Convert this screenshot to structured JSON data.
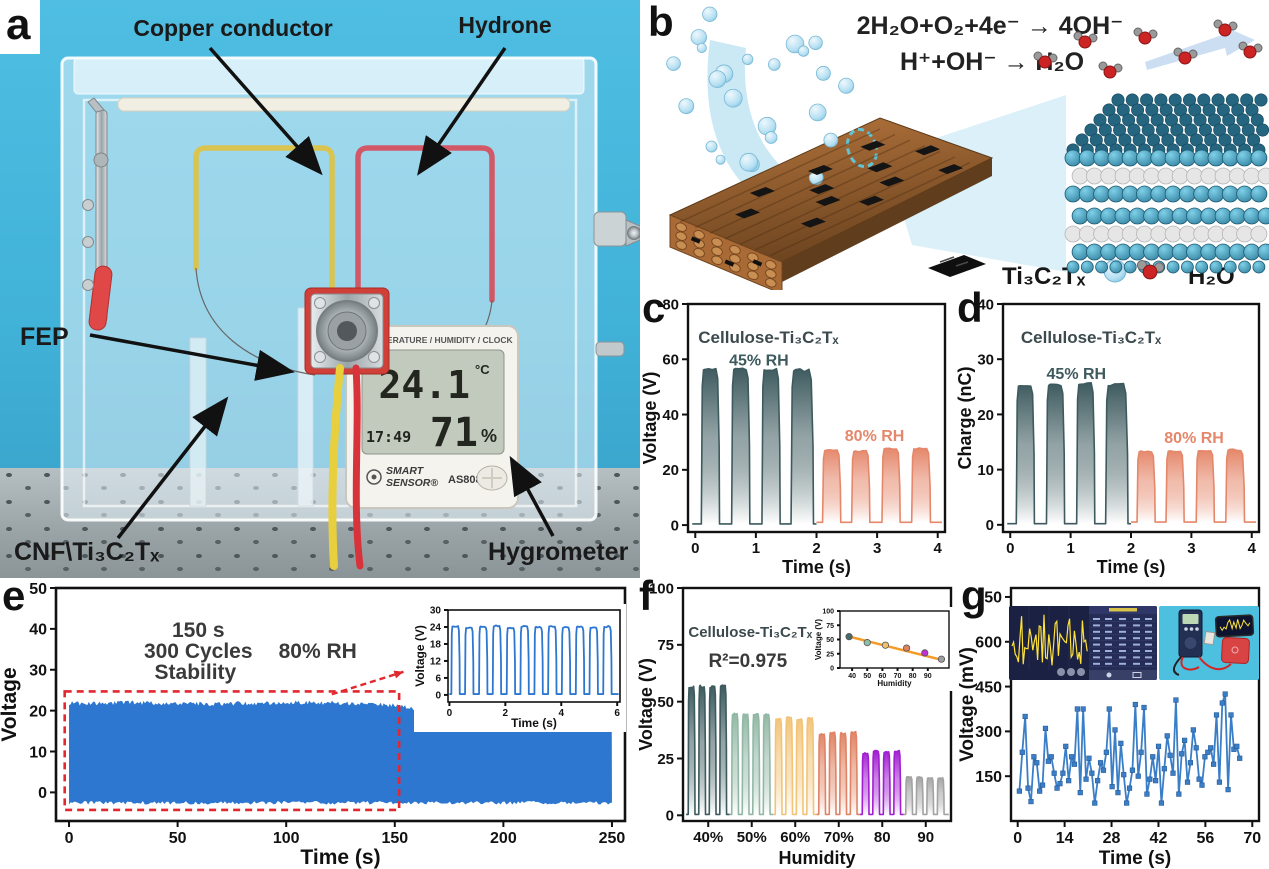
{
  "panels": {
    "a": "a",
    "b": "b",
    "c": "c",
    "d": "d",
    "e": "e",
    "f": "f",
    "g": "g"
  },
  "panel_a": {
    "labels": {
      "copper": "Copper conductor",
      "hydrone": "Hydrone",
      "fep": "FEP",
      "cnf": "CNF\\Ti₃C₂Tₓ",
      "hygrometer": "Hygrometer"
    },
    "hygrometer": {
      "header": "TEMPERATURE / HUMIDITY / CLOCK",
      "temperature": "24.1",
      "temp_unit": "°C",
      "time": "17:49",
      "humidity": "71",
      "humidity_unit": "%",
      "brand_line1": "SMART",
      "brand_line2": "SENSOR®",
      "model": "AS808"
    }
  },
  "panel_b": {
    "equation1": "2H₂O+O₂+4e⁻ → 4OH⁻",
    "equation2": "H⁺+OH⁻ → H₂O",
    "legend": {
      "mxene": "Ti₃C₂Tₓ",
      "water": "H₂O"
    }
  },
  "colors": {
    "teal": "#3d5a5e",
    "salmon": "#e5876a",
    "sage": "#92b8a5",
    "sand": "#f2c478",
    "purple": "#a21ed1",
    "gray": "#a3a3a3",
    "band_blue": "#2e77d0",
    "line_blue": "#3a7ec8",
    "fit_orange": "#f59a23",
    "dash_red": "#e0282e"
  },
  "chart_data": [
    {
      "id": "c",
      "type": "pulse-train",
      "xlabel": "Time (s)",
      "ylabel": "Voltage (V)",
      "xlim": [
        -0.12,
        4.12
      ],
      "ylim": [
        -2.5,
        80
      ],
      "xticks": [
        0,
        1,
        2,
        3,
        4
      ],
      "yticks": [
        0,
        20,
        40,
        60,
        80
      ],
      "series": [
        {
          "name": "45% RH",
          "color": "#3d5a5e",
          "x0": -0.05,
          "x1": 2.0,
          "base": 0.4,
          "pulses": [
            [
              0.1,
              0.4,
              57
            ],
            [
              0.6,
              0.9,
              57.2
            ],
            [
              1.1,
              1.4,
              57
            ],
            [
              1.58,
              1.95,
              56.6
            ]
          ]
        },
        {
          "name": "80% RH",
          "color": "#e5876a",
          "x0": 2.0,
          "x1": 4.07,
          "base": 1.0,
          "pulses": [
            [
              2.1,
              2.4,
              27.3
            ],
            [
              2.58,
              2.88,
              27.0
            ],
            [
              3.08,
              3.38,
              28.0
            ],
            [
              3.57,
              3.88,
              28.0
            ]
          ]
        }
      ],
      "annotations": [
        {
          "text": "Cellulose-Ti₃C₂Tₓ",
          "fx": 0.04,
          "fy": 0.17,
          "size": 17,
          "color": "#3c4a4e"
        },
        {
          "text": "45% RH",
          "fx": 0.16,
          "fy": 0.27,
          "size": 16,
          "color": "#3d5a5e"
        },
        {
          "text": "80% RH",
          "fx": 0.61,
          "fy": 0.6,
          "size": 16,
          "color": "#e5876a"
        }
      ],
      "m": {
        "l": 48,
        "r": 10,
        "t": 14,
        "b": 46
      },
      "fs": {
        "t": 15,
        "l": 18
      },
      "ylx": 16,
      "seed": 11
    },
    {
      "id": "d",
      "type": "pulse-train",
      "xlabel": "Time (s)",
      "ylabel": "Charge (nC)",
      "xlim": [
        -0.12,
        4.12
      ],
      "ylim": [
        -1.3,
        40
      ],
      "xticks": [
        0,
        1,
        2,
        3,
        4
      ],
      "yticks": [
        0,
        10,
        20,
        30,
        40
      ],
      "series": [
        {
          "name": "45% RH",
          "color": "#3d5a5e",
          "x0": -0.05,
          "x1": 2.0,
          "base": 0.2,
          "pulses": [
            [
              0.1,
              0.4,
              25.5
            ],
            [
              0.6,
              0.9,
              25.6
            ],
            [
              1.1,
              1.4,
              25.8
            ],
            [
              1.58,
              1.95,
              25.6
            ]
          ]
        },
        {
          "name": "80% RH",
          "color": "#e5876a",
          "x0": 2.0,
          "x1": 4.07,
          "base": 0.5,
          "pulses": [
            [
              2.1,
              2.4,
              13.4
            ],
            [
              2.58,
              2.88,
              13.5
            ],
            [
              3.08,
              3.38,
              13.6
            ],
            [
              3.57,
              3.88,
              13.7
            ]
          ]
        }
      ],
      "annotations": [
        {
          "text": "Cellulose-Ti₃C₂Tₓ",
          "fx": 0.07,
          "fy": 0.17,
          "size": 17,
          "color": "#3c4a4e"
        },
        {
          "text": "45% RH",
          "fx": 0.17,
          "fy": 0.33,
          "size": 16,
          "color": "#3d5a5e"
        },
        {
          "text": "80% RH",
          "fx": 0.63,
          "fy": 0.61,
          "size": 16,
          "color": "#e5876a"
        }
      ],
      "m": {
        "l": 48,
        "r": 10,
        "t": 14,
        "b": 46
      },
      "fs": {
        "t": 15,
        "l": 18
      },
      "ylx": 16,
      "seed": 12
    },
    {
      "id": "e",
      "type": "band",
      "xlabel": "Time (s)",
      "ylabel": "Voltage",
      "xlim": [
        -6,
        256
      ],
      "ylim": [
        -7,
        50
      ],
      "xticks": [
        0,
        50,
        100,
        150,
        200,
        250
      ],
      "yticks": [
        0,
        10,
        20,
        30,
        40,
        50
      ],
      "series": [
        {
          "color": "#2e77d0",
          "bottom": -3,
          "top": [
            [
              0,
              22.3
            ],
            [
              30,
              22.5
            ],
            [
              60,
              22.2
            ],
            [
              90,
              22.4
            ],
            [
              110,
              22.6
            ],
            [
              130,
              22.3
            ],
            [
              148,
              21.9
            ],
            [
              158,
              21.1
            ],
            [
              170,
              20.4
            ],
            [
              185,
              19.5
            ],
            [
              200,
              18.9
            ],
            [
              212,
              18.4
            ],
            [
              225,
              17.7
            ],
            [
              238,
              17.2
            ],
            [
              250,
              16.8
            ]
          ]
        }
      ],
      "annotations": [
        {
          "text": "150 s",
          "fx": 0.25,
          "fy": 0.21,
          "size": 21,
          "color": "#3a3a3a",
          "anchor": "middle"
        },
        {
          "text": "300 Cycles",
          "fx": 0.25,
          "fy": 0.3,
          "size": 21,
          "color": "#3a3a3a",
          "anchor": "middle"
        },
        {
          "text": "Stability",
          "fx": 0.245,
          "fy": 0.39,
          "size": 21,
          "color": "#3a3a3a",
          "anchor": "middle"
        },
        {
          "text": "80% RH",
          "fx": 0.46,
          "fy": 0.3,
          "size": 21,
          "color": "#3a3a3a",
          "anchor": "middle"
        }
      ],
      "shapes": [
        {
          "type": "dashed-rect",
          "x1": -2,
          "y1": -4.3,
          "x2": 152,
          "y2": 24.7,
          "color": "#e0282e",
          "width": 2.6
        },
        {
          "type": "dashed-arrow",
          "x1": 121,
          "y1": 24,
          "x2": 154,
          "y2": 29.5,
          "color": "#e0282e",
          "width": 2.4
        }
      ],
      "m": {
        "l": 56,
        "r": 12,
        "t": 10,
        "b": 48
      },
      "fs": {
        "t": 16,
        "l": 21
      },
      "ylx": 16,
      "fw": 2.6,
      "seed": 21
    },
    {
      "id": "e-inset",
      "type": "pulse-train",
      "xlabel": "Time (s)",
      "ylabel": "Voltage (V)",
      "xlim": [
        -0.05,
        6.1
      ],
      "ylim": [
        -2.5,
        30
      ],
      "xticks": [
        0,
        2,
        4,
        6
      ],
      "yticks": [
        0,
        6,
        12,
        18,
        24,
        30
      ],
      "series": [
        {
          "color": "#2e77d0",
          "fill": "none",
          "x0": 0,
          "x1": 6.05,
          "base": 0.3,
          "sw": 1.8,
          "pulses": [
            [
              0.07,
              0.37,
              24.5
            ],
            [
              0.56,
              0.86,
              24.0
            ],
            [
              1.06,
              1.36,
              24.3
            ],
            [
              1.55,
              1.85,
              24.6
            ],
            [
              2.05,
              2.35,
              24.0
            ],
            [
              2.54,
              2.84,
              24.4
            ],
            [
              3.04,
              3.34,
              24.2
            ],
            [
              3.53,
              3.83,
              24.5
            ],
            [
              4.02,
              4.32,
              24.0
            ],
            [
              4.52,
              4.82,
              24.3
            ],
            [
              5.01,
              5.31,
              24.1
            ],
            [
              5.5,
              5.8,
              24.4
            ]
          ]
        }
      ],
      "m": {
        "l": 34,
        "r": 6,
        "t": 6,
        "b": 30
      },
      "fs": {
        "t": 10,
        "l": 12
      },
      "ylx": 10,
      "fw": 1.6,
      "tl": 4,
      "seed": 31
    },
    {
      "id": "f",
      "type": "pulse-train",
      "xlabel": "Humidity",
      "ylabel": "Voltage (V)",
      "xlim": [
        34.2,
        95.8
      ],
      "ylim": [
        -2.5,
        100
      ],
      "xticks": [
        40,
        50,
        60,
        70,
        80,
        90
      ],
      "xtick_labels": [
        "40%",
        "50%",
        "60%",
        "70%",
        "80",
        "90"
      ],
      "yticks": [
        0,
        25,
        50,
        75,
        100
      ],
      "series": [
        {
          "name": "40%",
          "color": "#3d5a5e",
          "x0": 34.9,
          "x1": 44.9,
          "base": 0.4,
          "pulses": [
            [
              35.4,
              36.95,
              57
            ],
            [
              37.82,
              39.37,
              57.4
            ],
            [
              40.24,
              41.79,
              57
            ],
            [
              42.66,
              44.21,
              57.5
            ]
          ]
        },
        {
          "name": "50%",
          "color": "#92b8a5",
          "x0": 44.9,
          "x1": 54.9,
          "base": 0.4,
          "pulses": [
            [
              45.4,
              46.95,
              45
            ],
            [
              47.82,
              49.37,
              44.6
            ],
            [
              50.24,
              51.79,
              45
            ],
            [
              52.66,
              54.21,
              44.8
            ]
          ]
        },
        {
          "name": "60%",
          "color": "#f2c478",
          "x0": 54.9,
          "x1": 64.9,
          "base": 0.4,
          "pulses": [
            [
              55.4,
              56.95,
              43
            ],
            [
              57.82,
              59.37,
              43.4
            ],
            [
              60.24,
              61.79,
              42.6
            ],
            [
              62.66,
              64.21,
              43
            ]
          ]
        },
        {
          "name": "70%",
          "color": "#e08364",
          "x0": 64.9,
          "x1": 74.9,
          "base": 0.4,
          "pulses": [
            [
              65.4,
              66.95,
              36
            ],
            [
              67.82,
              69.37,
              36.6
            ],
            [
              70.24,
              71.79,
              36.4
            ],
            [
              72.66,
              74.21,
              37
            ]
          ]
        },
        {
          "name": "80",
          "color": "#a21ed1",
          "x0": 74.9,
          "x1": 84.9,
          "base": 0.4,
          "pulses": [
            [
              75.4,
              76.95,
              27.5
            ],
            [
              77.82,
              79.37,
              28.6
            ],
            [
              80.24,
              81.79,
              28
            ],
            [
              82.66,
              84.21,
              28.5
            ]
          ]
        },
        {
          "name": "90",
          "color": "#a3a3a3",
          "x0": 84.9,
          "x1": 95.3,
          "base": 0.4,
          "pulses": [
            [
              85.4,
              86.95,
              17
            ],
            [
              87.82,
              89.37,
              17
            ],
            [
              90.24,
              91.79,
              16.5
            ],
            [
              92.66,
              94.21,
              16.5
            ]
          ]
        }
      ],
      "annotations": [
        {
          "text": "Cellulose-Ti₃C₂Tₓ",
          "fx": 0.02,
          "fy": 0.21,
          "size": 15,
          "color": "#3c4a4e"
        },
        {
          "text": "R²=0.975",
          "fx": 0.095,
          "fy": 0.34,
          "size": 19,
          "color": "#3a3a3a"
        }
      ],
      "m": {
        "l": 46,
        "r": 8,
        "t": 10,
        "b": 48
      },
      "fs": {
        "t": 15,
        "l": 18
      },
      "ylx": 15,
      "seed": 41
    },
    {
      "id": "f-inset",
      "type": "scatter",
      "xlabel": "Humidity",
      "ylabel": "Voltage (V)",
      "xlim": [
        32,
        104
      ],
      "ylim": [
        0,
        100
      ],
      "xticks": [
        40,
        50,
        60,
        70,
        80,
        90
      ],
      "yticks": [
        0,
        25,
        50,
        75,
        100
      ],
      "fit": {
        "x1": 36,
        "y1": 56.5,
        "x2": 101,
        "y2": 13,
        "color": "#f59a23",
        "width": 2.5
      },
      "points": [
        {
          "x": 38,
          "y": 55,
          "c": "#4a6a6e"
        },
        {
          "x": 50,
          "y": 44.5,
          "c": "#8fbfa8"
        },
        {
          "x": 62,
          "y": 40,
          "c": "#f0c070"
        },
        {
          "x": 76,
          "y": 35,
          "c": "#e08364"
        },
        {
          "x": 88,
          "y": 26.5,
          "c": "#c030d0"
        },
        {
          "x": 99,
          "y": 15.5,
          "c": "#9e9e9e"
        }
      ],
      "m": {
        "l": 26,
        "r": 5,
        "t": 4,
        "b": 23
      },
      "fs": {
        "t": 7,
        "l": 8
      },
      "ylx": 7,
      "fw": 1.4,
      "tl": 3,
      "seed": 51
    },
    {
      "id": "g",
      "type": "line",
      "xlabel": "Time (s)",
      "ylabel": "Voltage (mV)",
      "xlim": [
        -2,
        72
      ],
      "ylim": [
        0,
        780
      ],
      "xticks": [
        0,
        14,
        28,
        42,
        56,
        70
      ],
      "yticks": [
        150,
        300,
        450,
        600,
        750
      ],
      "series": [
        {
          "color": "#3a7ec8",
          "xstart": 0.5,
          "xstep": 0.865,
          "marker": "square",
          "values": [
            100,
            230,
            350,
            110,
            65,
            215,
            195,
            100,
            120,
            310,
            200,
            215,
            160,
            110,
            125,
            160,
            250,
            135,
            215,
            190,
            375,
            95,
            375,
            140,
            210,
            160,
            60,
            135,
            195,
            170,
            230,
            375,
            115,
            305,
            95,
            260,
            155,
            60,
            110,
            170,
            390,
            150,
            230,
            380,
            90,
            140,
            215,
            135,
            250,
            60,
            175,
            285,
            220,
            160,
            405,
            90,
            225,
            270,
            130,
            195,
            305,
            245,
            140,
            120,
            215,
            230,
            245,
            190,
            355,
            130,
            395,
            425,
            105,
            355,
            240,
            250,
            210
          ]
        }
      ],
      "m": {
        "l": 52,
        "r": 10,
        "t": 10,
        "b": 48
      },
      "fs": {
        "t": 16,
        "l": 19
      },
      "ylx": 14,
      "seed": 61
    }
  ]
}
